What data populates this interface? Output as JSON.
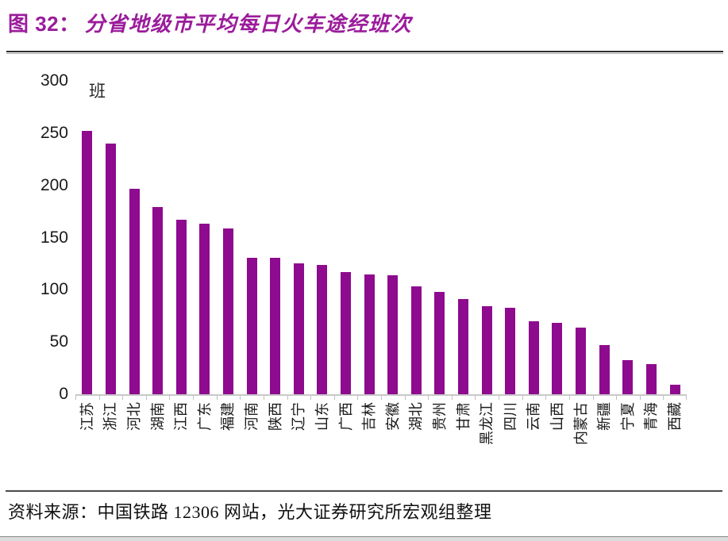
{
  "header": {
    "title_prefix": "图 32：",
    "title_name": "分省地级市平均每日火车途经班次"
  },
  "chart_data": {
    "type": "bar",
    "title": "分省地级市平均每日火车途经班次",
    "unit_label": "班",
    "xlabel": "",
    "ylabel": "班",
    "categories": [
      "江苏",
      "浙江",
      "河北",
      "湖南",
      "江西",
      "广东",
      "福建",
      "河南",
      "陕西",
      "辽宁",
      "山东",
      "广西",
      "吉林",
      "安徽",
      "湖北",
      "贵州",
      "甘肃",
      "黑龙江",
      "四川",
      "云南",
      "山西",
      "内蒙古",
      "新疆",
      "宁夏",
      "青海",
      "西藏"
    ],
    "values": [
      252,
      240,
      197,
      179,
      167,
      163,
      159,
      131,
      131,
      125,
      124,
      117,
      115,
      114,
      103,
      98,
      91,
      84,
      83,
      70,
      68,
      64,
      47,
      33,
      29,
      9
    ],
    "ylim": [
      0,
      300
    ],
    "yticks": [
      0,
      50,
      100,
      150,
      200,
      250,
      300
    ],
    "bar_color": "#8E0A8E",
    "grid": false,
    "legend": false
  },
  "footer": {
    "source_text": "资料来源：中国铁路 12306 网站，光大证券研究所宏观组整理"
  },
  "colors": {
    "accent": "#9B1C9B",
    "bar": "#8E0A8E",
    "axis_line": "#C8C8C8",
    "tick": "#BFBFBF",
    "text": "#1a1a1a"
  }
}
